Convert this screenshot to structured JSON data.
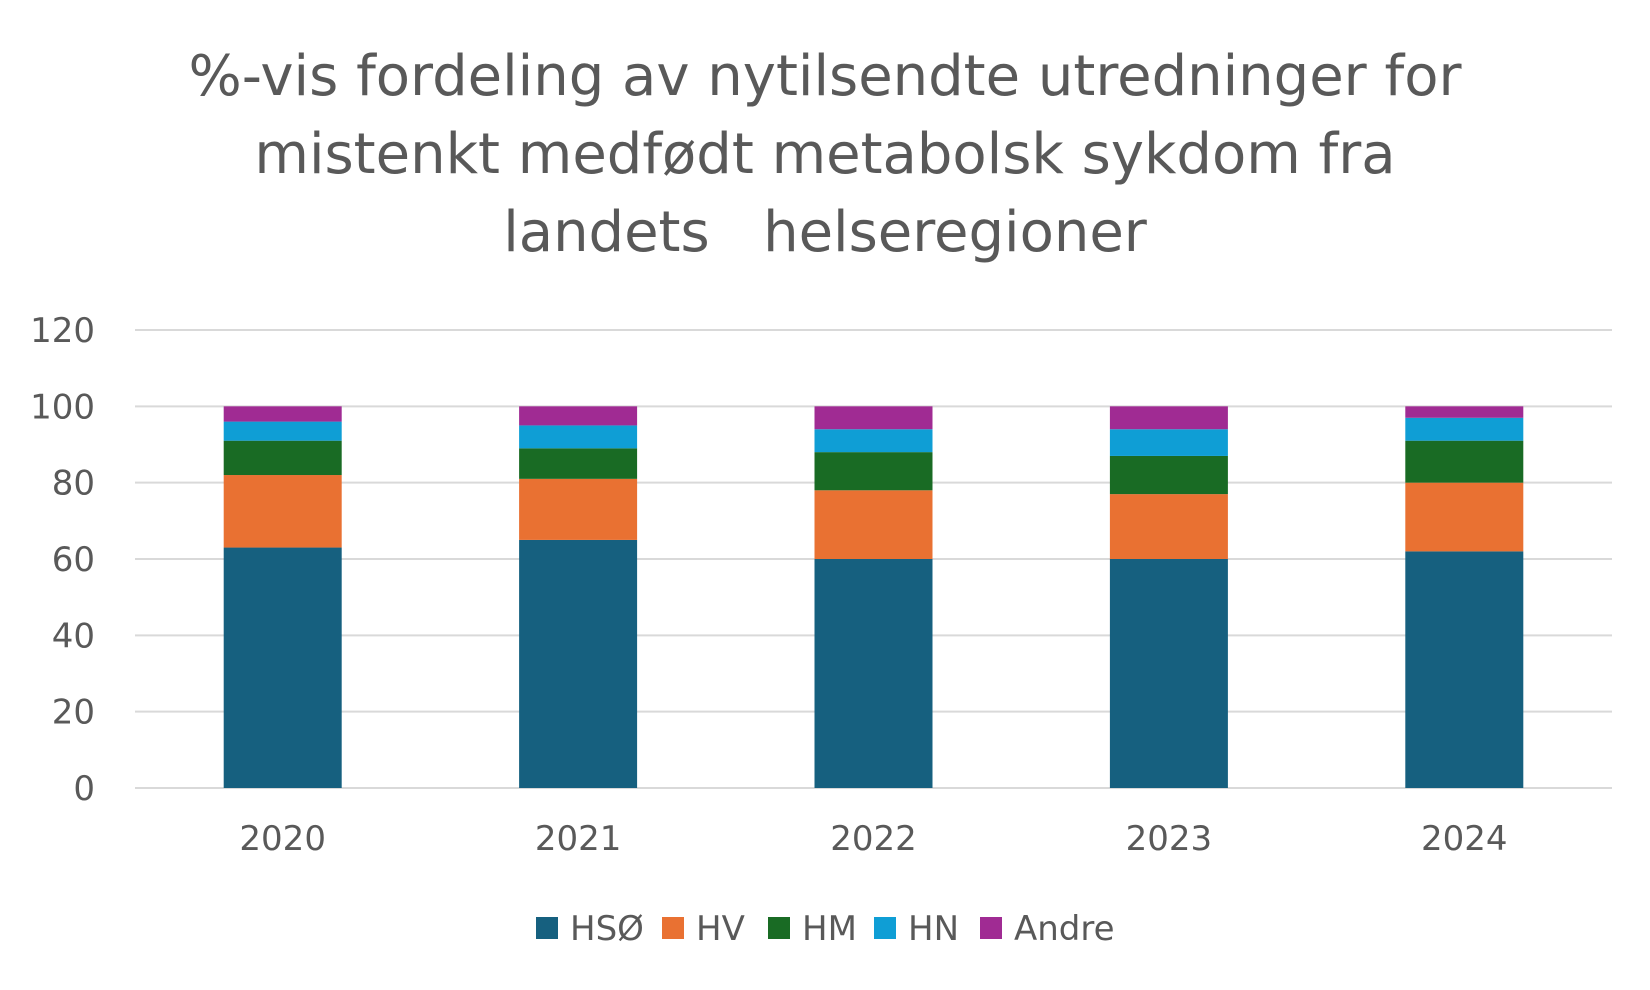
{
  "chart_data": {
    "type": "bar",
    "stacked": true,
    "title_lines": [
      "%-vis fordeling av nytilsendte utredninger for",
      "mistenkt medfødt metabolsk sykdom fra",
      "landets   helseregioner"
    ],
    "categories": [
      "2020",
      "2021",
      "2022",
      "2023",
      "2024"
    ],
    "series": [
      {
        "name": "HSØ",
        "color": "#16607f",
        "values": [
          63,
          65,
          60,
          60,
          62
        ]
      },
      {
        "name": "HV",
        "color": "#e97132",
        "values": [
          19,
          16,
          18,
          17,
          18
        ]
      },
      {
        "name": "HM",
        "color": "#196b24",
        "values": [
          9,
          8,
          10,
          10,
          11
        ]
      },
      {
        "name": "HN",
        "color": "#0f9ed5",
        "values": [
          5,
          6,
          6,
          7,
          6
        ]
      },
      {
        "name": "Andre",
        "color": "#a02b93",
        "values": [
          4,
          5,
          6,
          6,
          3
        ]
      }
    ],
    "ylim": [
      0,
      120
    ],
    "yticks": [
      0,
      20,
      40,
      60,
      80,
      100,
      120
    ],
    "xlabel": "",
    "ylabel": "",
    "grid": true,
    "legend_position": "bottom"
  }
}
